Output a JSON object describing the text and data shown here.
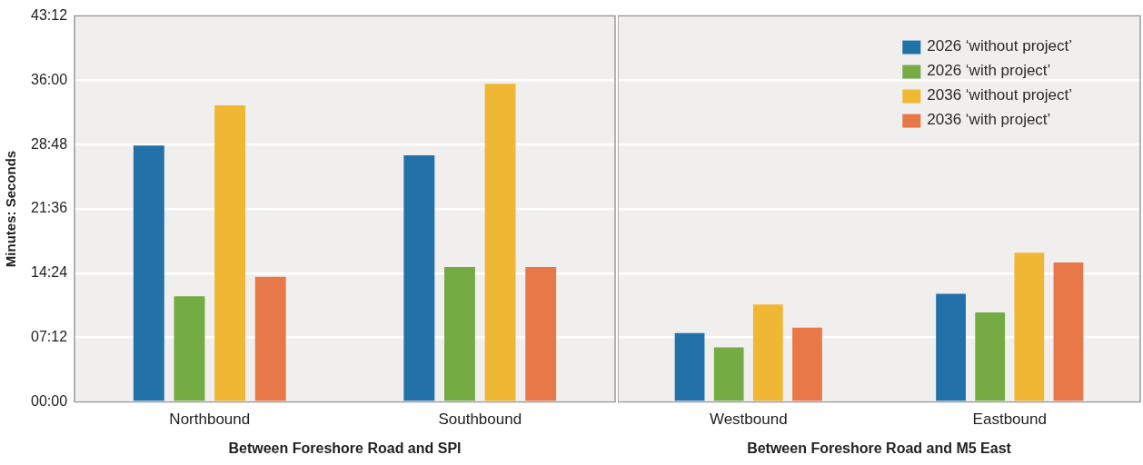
{
  "chart_data": [
    {
      "type": "bar",
      "categories": [
        "Northbound",
        "Southbound"
      ],
      "xlabel": "Between Foreshore Road and SPI",
      "ylabel": "Minutes: Seconds",
      "series": [
        {
          "color": "#2271a8",
          "values": [
            28.7,
            27.6
          ]
        },
        {
          "color": "#74ab43",
          "values": [
            11.8,
            15.1
          ]
        },
        {
          "color": "#efb734",
          "values": [
            33.2,
            35.6
          ]
        },
        {
          "color": "#e87848",
          "values": [
            14.0,
            15.1
          ]
        }
      ],
      "ylim": [
        0,
        43.2
      ],
      "yticks": [
        {
          "value": 0,
          "label": "00:00"
        },
        {
          "value": 7.2,
          "label": "07:12"
        },
        {
          "value": 14.4,
          "label": "14:24"
        },
        {
          "value": 21.6,
          "label": "21:36"
        },
        {
          "value": 28.8,
          "label": "28:48"
        },
        {
          "value": 36,
          "label": "36:00"
        },
        {
          "value": 43.2,
          "label": "43:12"
        }
      ],
      "grid": "y"
    },
    {
      "type": "bar",
      "categories": [
        "Westbound",
        "Eastbound"
      ],
      "xlabel": "Between Foreshore Road and M5 East",
      "series": [
        {
          "name": "2026 ‘without project’",
          "color": "#2271a8",
          "values": [
            7.7,
            12.1
          ]
        },
        {
          "name": "2026 ‘with project’",
          "color": "#74ab43",
          "values": [
            6.1,
            10.0
          ]
        },
        {
          "name": "2036 ‘without project’",
          "color": "#efb734",
          "values": [
            10.9,
            16.7
          ]
        },
        {
          "name": "2036 ‘with project’",
          "color": "#e87848",
          "values": [
            8.3,
            15.6
          ]
        }
      ],
      "ylim": [
        0,
        43.2
      ],
      "yticks": [
        {
          "value": 0,
          "label": null
        },
        {
          "value": 7.2,
          "label": null
        },
        {
          "value": 14.4,
          "label": null
        },
        {
          "value": 21.6,
          "label": null
        },
        {
          "value": 28.8,
          "label": null
        },
        {
          "value": 36,
          "label": null
        },
        {
          "value": 43.2,
          "label": null
        }
      ],
      "grid": "y",
      "legend": "top right",
      "tick_labels": "x"
    }
  ]
}
